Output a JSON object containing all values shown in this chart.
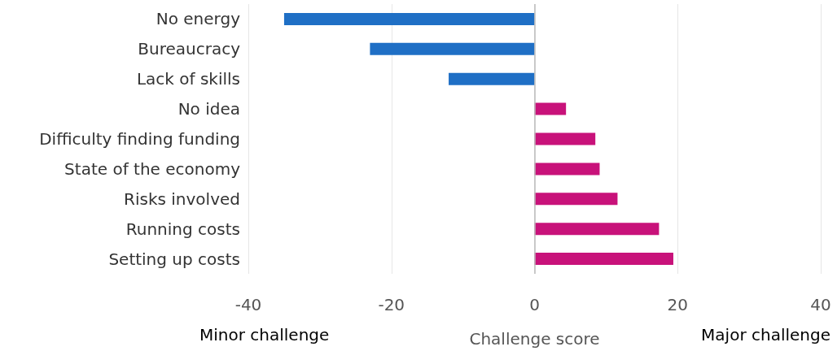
{
  "chart_data": {
    "type": "bar",
    "orientation": "horizontal",
    "categories": [
      "No energy",
      "Bureaucracy",
      "Lack of skills",
      "No idea",
      "Difficulty finding funding",
      "State of the economy",
      "Risks involved",
      "Running costs",
      "Setting up costs"
    ],
    "values": [
      -35,
      -23,
      -12,
      4.4,
      8.5,
      9.1,
      11.6,
      17.4,
      19.4
    ],
    "colors": [
      "#1f6fc5",
      "#1f6fc5",
      "#1f6fc5",
      "#c8127a",
      "#c8127a",
      "#c8127a",
      "#c8127a",
      "#c8127a",
      "#c8127a"
    ],
    "xlim": [
      -40,
      40
    ],
    "xticks": [
      -40,
      -20,
      0,
      20,
      40
    ],
    "grid": "x",
    "xlabel": "Challenge score",
    "annotations": [
      "Minor challenge",
      "Major challenge"
    ]
  }
}
